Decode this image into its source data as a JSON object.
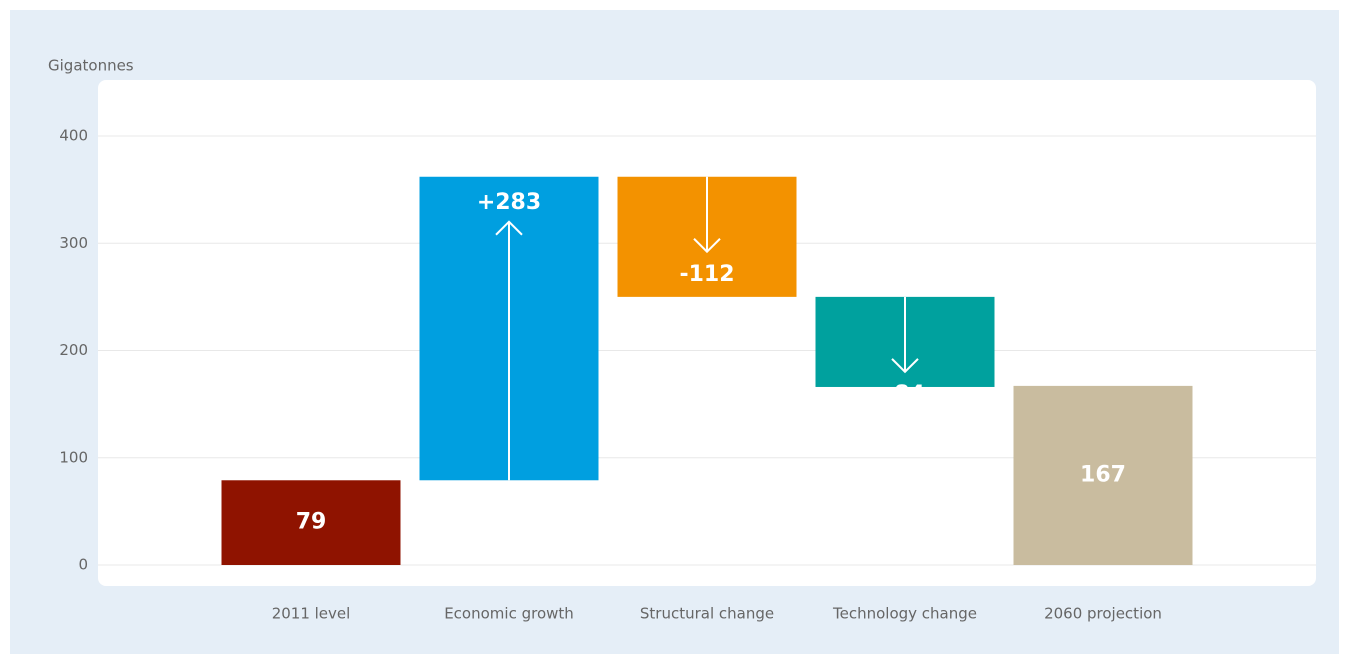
{
  "chart_data": {
    "type": "waterfall",
    "y_label": "Gigatonnes",
    "categories": [
      "2011 level",
      "Economic growth",
      "Structural change",
      "Technology change",
      "2060 projection"
    ],
    "values": [
      79,
      283,
      -112,
      -84,
      167
    ],
    "value_labels": [
      "79",
      "+283",
      "-112",
      "-84",
      "167"
    ],
    "colors": [
      "#8f1300",
      "#009fe0",
      "#f39200",
      "#00a19e",
      "#c9bc9f"
    ],
    "ylim": [
      0,
      400
    ],
    "yticks": [
      0,
      100,
      200,
      300,
      400
    ],
    "grid": true
  }
}
